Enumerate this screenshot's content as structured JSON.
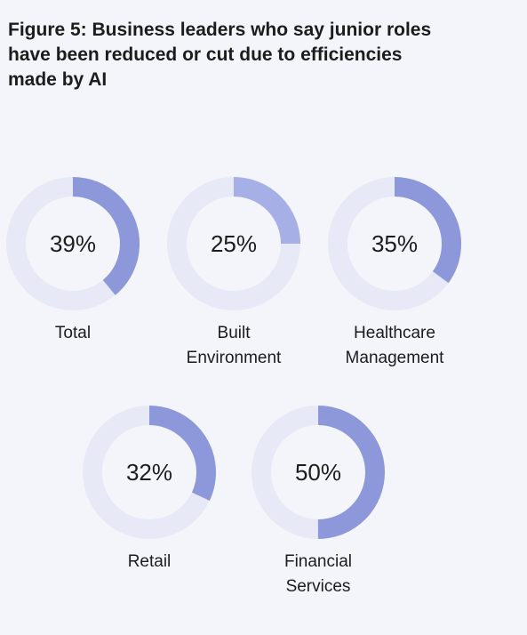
{
  "title": "Figure 5: Business leaders who say junior roles have been reduced or cut due to efficiencies made by AI",
  "colors": {
    "track": "#e8e9f6",
    "fill": "#8c98d9",
    "fill_light": "#a7b0e6"
  },
  "chart_data": {
    "type": "pie",
    "title": "Figure 5: Business leaders who say junior roles have been reduced or cut due to efficiencies made by AI",
    "unit": "%",
    "items": [
      {
        "value": 39,
        "display": "39%",
        "label": [
          "Total"
        ]
      },
      {
        "value": 25,
        "display": "25%",
        "label": [
          "Built",
          "Environment"
        ]
      },
      {
        "value": 35,
        "display": "35%",
        "label": [
          "Healthcare",
          "Management"
        ]
      },
      {
        "value": 32,
        "display": "32%",
        "label": [
          "Retail"
        ]
      },
      {
        "value": 50,
        "display": "50%",
        "label": [
          "Financial",
          "Services"
        ]
      }
    ]
  }
}
